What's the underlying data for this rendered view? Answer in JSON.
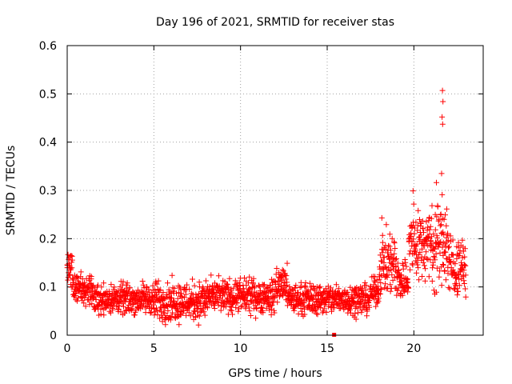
{
  "chart_data": {
    "type": "scatter",
    "title": "Day 196 of 2021, SRMTID for receiver stas",
    "xlabel": "GPS time / hours",
    "ylabel": "SRMTID / TECUs",
    "xlim": [
      0,
      24
    ],
    "ylim": [
      0,
      0.6
    ],
    "xticks": [
      0,
      5,
      10,
      15,
      20
    ],
    "yticks": [
      0,
      0.1,
      0.2,
      0.3,
      0.4,
      0.5,
      0.6
    ],
    "xtick_labels": [
      "0",
      "5",
      "10",
      "15",
      "20"
    ],
    "ytick_labels": [
      "0",
      "0.1",
      "0.2",
      "0.3",
      "0.4",
      "0.5",
      "0.6"
    ],
    "grid": true,
    "marker": "+",
    "series": [
      {
        "name": "stas",
        "color": "#ff0000",
        "approximate": true,
        "time_range": [
          0,
          23
        ],
        "segments": [
          {
            "t0": 0.0,
            "t1": 0.3,
            "low": 0.08,
            "high": 0.2
          },
          {
            "t0": 0.3,
            "t1": 1.5,
            "low": 0.05,
            "high": 0.14
          },
          {
            "t0": 1.5,
            "t1": 5.0,
            "low": 0.03,
            "high": 0.12
          },
          {
            "t0": 5.0,
            "t1": 8.0,
            "low": 0.01,
            "high": 0.13
          },
          {
            "t0": 8.0,
            "t1": 12.0,
            "low": 0.03,
            "high": 0.13
          },
          {
            "t0": 12.0,
            "t1": 12.7,
            "low": 0.05,
            "high": 0.16
          },
          {
            "t0": 12.7,
            "t1": 17.5,
            "low": 0.03,
            "high": 0.12
          },
          {
            "t0": 17.5,
            "t1": 18.0,
            "low": 0.05,
            "high": 0.13
          },
          {
            "t0": 18.0,
            "t1": 19.0,
            "low": 0.06,
            "high": 0.24
          },
          {
            "t0": 19.0,
            "t1": 19.7,
            "low": 0.05,
            "high": 0.18
          },
          {
            "t0": 19.7,
            "t1": 21.0,
            "low": 0.08,
            "high": 0.3
          },
          {
            "t0": 21.0,
            "t1": 21.6,
            "low": 0.06,
            "high": 0.32
          },
          {
            "t0": 21.6,
            "t1": 22.0,
            "low": 0.05,
            "high": 0.34
          },
          {
            "t0": 22.0,
            "t1": 23.0,
            "low": 0.05,
            "high": 0.23
          }
        ],
        "outliers": [
          {
            "x": 21.65,
            "y": 0.507
          },
          {
            "x": 21.68,
            "y": 0.484
          },
          {
            "x": 21.63,
            "y": 0.452
          },
          {
            "x": 21.66,
            "y": 0.437
          },
          {
            "x": 21.6,
            "y": 0.335
          },
          {
            "x": 21.3,
            "y": 0.316
          },
          {
            "x": 19.95,
            "y": 0.299
          },
          {
            "x": 18.15,
            "y": 0.243
          }
        ],
        "point_count": 1900
      }
    ],
    "markers": [
      {
        "x": 15.4,
        "y": 0.0,
        "shape": "square"
      }
    ]
  }
}
